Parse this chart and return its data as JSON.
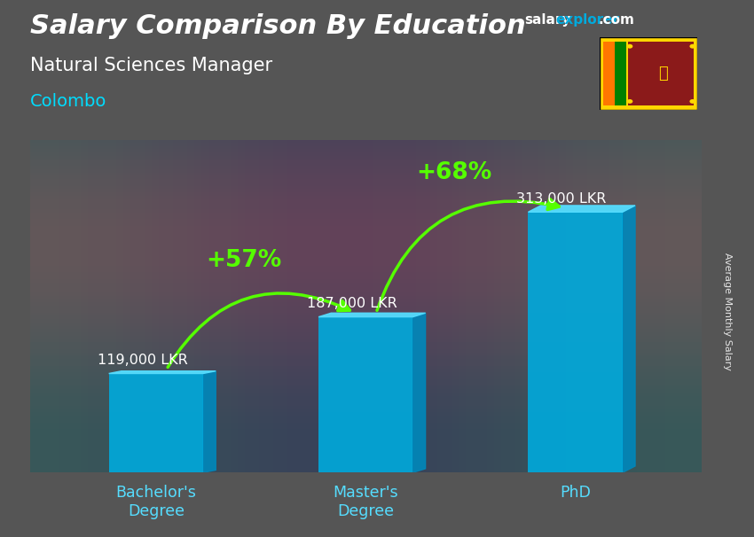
{
  "title_main": "Salary Comparison By Education",
  "title_sub": "Natural Sciences Manager",
  "city": "Colombo",
  "ylabel": "Average Monthly Salary",
  "categories": [
    "Bachelor's\nDegree",
    "Master's\nDegree",
    "PhD"
  ],
  "values": [
    119000,
    187000,
    313000
  ],
  "value_labels": [
    "119,000 LKR",
    "187,000 LKR",
    "313,000 LKR"
  ],
  "pct_labels": [
    "+57%",
    "+68%"
  ],
  "bar_color_main": "#00AADD",
  "bar_color_light": "#55DDFF",
  "bar_color_dark": "#0088BB",
  "background_color": "#555555",
  "title_color": "#FFFFFF",
  "subtitle_color": "#FFFFFF",
  "city_color": "#00DDFF",
  "value_label_color": "#FFFFFF",
  "pct_color": "#55FF00",
  "website_salary_color": "#FFFFFF",
  "website_explorer_color": "#00AADD",
  "website_com_color": "#FFFFFF",
  "bar_width": 0.45,
  "ylim": [
    0,
    400000
  ],
  "x_positions": [
    0,
    1,
    2
  ],
  "flag_colors": {
    "saffron": "#FF7700",
    "green": "#008000",
    "maroon": "#8B1A1A",
    "gold": "#FFD700",
    "teal": "#008080"
  }
}
